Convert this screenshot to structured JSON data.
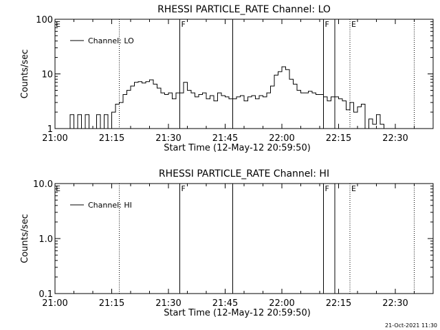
{
  "chart_data": [
    {
      "type": "line",
      "title": "RHESSI PARTICLE_RATE Channel: LO",
      "xlabel": "Start Time (12-May-12 20:59:50)",
      "ylabel": "Counts/sec",
      "xscale": "time",
      "yscale": "log",
      "xlim": [
        "21:00",
        "22:40"
      ],
      "ylim": [
        1,
        100
      ],
      "xticks": [
        "21:00",
        "21:15",
        "21:30",
        "21:45",
        "22:00",
        "22:15",
        "22:30"
      ],
      "yticks": [
        "1",
        "10",
        "100"
      ],
      "legend": {
        "label": "Channel: LO",
        "position": "top-left"
      },
      "markers": [
        {
          "time": "21:17",
          "style": "dotted",
          "label": ""
        },
        {
          "time": "21:33",
          "style": "solid",
          "label": "F"
        },
        {
          "time": "21:47",
          "style": "solid",
          "label": ""
        },
        {
          "time": "22:11",
          "style": "solid",
          "label": "F"
        },
        {
          "time": "22:14",
          "style": "solid",
          "label": ""
        },
        {
          "time": "22:18",
          "style": "dotted",
          "label": "E"
        },
        {
          "time": "22:35",
          "style": "dotted",
          "label": ""
        }
      ],
      "start_marker_label": "E",
      "series": [
        {
          "name": "Channel: LO",
          "x": [
            "21:03",
            "21:04",
            "21:05",
            "21:06",
            "21:07",
            "21:08",
            "21:09",
            "21:10",
            "21:11",
            "21:12",
            "21:13",
            "21:14",
            "21:15",
            "21:16",
            "21:17",
            "21:18",
            "21:19",
            "21:20",
            "21:21",
            "21:22",
            "21:23",
            "21:24",
            "21:25",
            "21:26",
            "21:27",
            "21:28",
            "21:29",
            "21:30",
            "21:31",
            "21:32",
            "21:33",
            "21:34",
            "21:35",
            "21:36",
            "21:37",
            "21:38",
            "21:39",
            "21:40",
            "21:41",
            "21:42",
            "21:43",
            "21:44",
            "21:45",
            "21:46",
            "21:47",
            "21:48",
            "21:49",
            "21:50",
            "21:51",
            "21:52",
            "21:53",
            "21:54",
            "21:55",
            "21:56",
            "21:57",
            "21:58",
            "21:59",
            "22:00",
            "22:01",
            "22:02",
            "22:03",
            "22:04",
            "22:05",
            "22:06",
            "22:07",
            "22:08",
            "22:09",
            "22:10",
            "22:11",
            "22:12",
            "22:13",
            "22:14",
            "22:15",
            "22:16",
            "22:17",
            "22:18",
            "22:19",
            "22:20",
            "22:21",
            "22:22",
            "22:23",
            "22:24",
            "22:25",
            "22:26",
            "22:27",
            "22:28",
            "22:29",
            "22:30",
            "22:31",
            "22:32",
            "22:33",
            "22:34"
          ],
          "y": [
            1,
            1.8,
            1,
            1.8,
            1,
            1.8,
            1,
            1,
            1.8,
            1,
            1.8,
            1,
            2,
            2.8,
            3,
            4.2,
            5,
            6,
            7,
            7.2,
            6.8,
            7.2,
            7.8,
            6.5,
            5.5,
            4.5,
            4.2,
            4.5,
            3.5,
            4.5,
            4.5,
            7,
            5,
            4.5,
            3.8,
            4.2,
            4.5,
            3.5,
            4,
            3.2,
            4.5,
            4,
            3.8,
            3.5,
            3.5,
            3.8,
            4,
            3.2,
            3.8,
            4,
            3.5,
            4,
            3.8,
            4.5,
            6,
            9.5,
            11,
            13.5,
            12,
            8,
            6.5,
            5,
            4.5,
            4.5,
            4.8,
            4.5,
            4.2,
            4.2,
            3.8,
            3.2,
            3.8,
            3.8,
            3.5,
            3.2,
            2.2,
            3,
            2,
            2.5,
            2.8,
            1,
            1.5,
            1.2,
            1.8,
            1.2,
            1,
            1,
            1,
            1,
            1,
            1,
            1,
            1
          ]
        }
      ]
    },
    {
      "type": "line",
      "title": "RHESSI PARTICLE_RATE Channel: HI",
      "xlabel": "Start Time (12-May-12 20:59:50)",
      "ylabel": "Counts/sec",
      "xscale": "time",
      "yscale": "log",
      "xlim": [
        "21:00",
        "22:40"
      ],
      "ylim": [
        0.1,
        10
      ],
      "xticks": [
        "21:00",
        "21:15",
        "21:30",
        "21:45",
        "22:00",
        "22:15",
        "22:30"
      ],
      "yticks": [
        "0.1",
        "1.0",
        "10.0"
      ],
      "legend": {
        "label": "Channel: HI",
        "position": "top-left"
      },
      "markers": [
        {
          "time": "21:17",
          "style": "dotted",
          "label": ""
        },
        {
          "time": "21:33",
          "style": "solid",
          "label": "F"
        },
        {
          "time": "21:47",
          "style": "solid",
          "label": ""
        },
        {
          "time": "22:11",
          "style": "solid",
          "label": "F"
        },
        {
          "time": "22:14",
          "style": "solid",
          "label": ""
        },
        {
          "time": "22:18",
          "style": "dotted",
          "label": "E"
        },
        {
          "time": "22:35",
          "style": "dotted",
          "label": ""
        }
      ],
      "start_marker_label": "E",
      "series": [
        {
          "name": "Channel: HI",
          "x": [],
          "y": []
        }
      ]
    }
  ],
  "footer": {
    "timestamp": "21-Oct-2021 11:30"
  }
}
